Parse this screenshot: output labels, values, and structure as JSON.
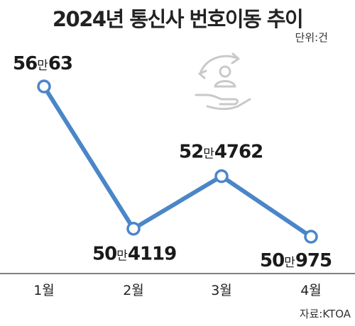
{
  "chart_data": {
    "type": "line",
    "title": "2024년 통신사 번호이동 추이",
    "unit_note": "단위:건",
    "source": "자료:KTOA",
    "categories": [
      "1월",
      "2월",
      "3월",
      "4월"
    ],
    "values": [
      560063,
      504119,
      524762,
      500975
    ],
    "data_labels": [
      {
        "big": "56",
        "man": "만",
        "rest": "63"
      },
      {
        "big": "50",
        "man": "만",
        "rest": "4119"
      },
      {
        "big": "52",
        "man": "만",
        "rest": "4762"
      },
      {
        "big": "50",
        "man": "만",
        "rest": "975"
      }
    ],
    "line_color": "#4a86c8",
    "grid": false
  }
}
